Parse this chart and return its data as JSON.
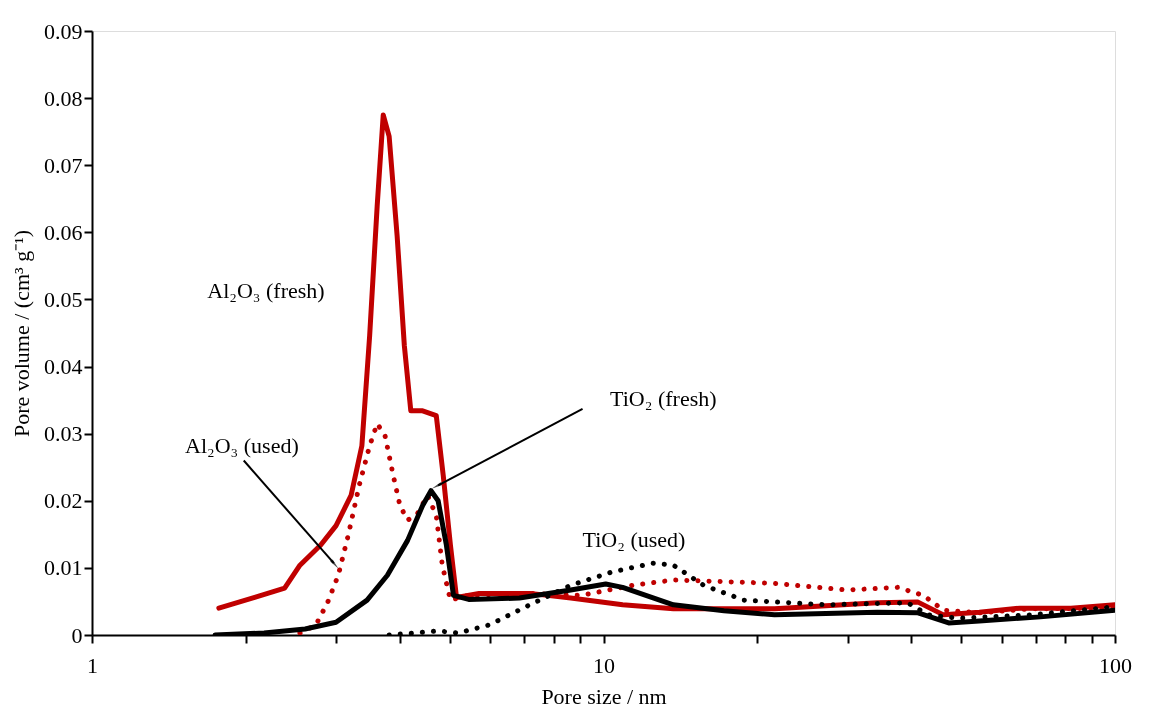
{
  "chart_data": {
    "type": "line",
    "xlabel": "Pore size / nm",
    "ylabel": "Pore volume / (cm³ g⁻¹)",
    "log": "x",
    "grid": false,
    "legend": false,
    "marker": "none",
    "xlim": [
      1,
      100
    ],
    "ylim": [
      0,
      0.09
    ],
    "xticks": [
      1,
      {
        "value": 2,
        "label": null
      },
      {
        "value": 3,
        "label": null
      },
      {
        "value": 4,
        "label": null
      },
      {
        "value": 5,
        "label": null
      },
      {
        "value": 6,
        "label": null
      },
      {
        "value": 7,
        "label": null
      },
      {
        "value": 8,
        "label": null
      },
      {
        "value": 9,
        "label": null
      },
      10,
      {
        "value": 20,
        "label": null
      },
      {
        "value": 30,
        "label": null
      },
      {
        "value": 40,
        "label": null
      },
      {
        "value": 50,
        "label": null
      },
      {
        "value": 60,
        "label": null
      },
      {
        "value": 70,
        "label": null
      },
      {
        "value": 80,
        "label": null
      },
      {
        "value": 90,
        "label": null
      },
      100
    ],
    "yticks": [
      0,
      0.01,
      0.02,
      0.03,
      0.04,
      0.05,
      0.06,
      0.07,
      0.08,
      0.09
    ],
    "series": [
      {
        "name": "Al₂O₃ (fresh)",
        "color": "#c00000",
        "line_style": "solid",
        "x": [
          1.77,
          2.08,
          2.38,
          2.55,
          2.8,
          3.0,
          3.21,
          3.37,
          3.49,
          3.61,
          3.71,
          3.81,
          3.95,
          4.08,
          4.2,
          4.43,
          4.71,
          4.86,
          5.02,
          5.16,
          5.71,
          7.18,
          8.63,
          10.9,
          13.7,
          21.6,
          34.3,
          41.2,
          46.2,
          54.3,
          65.2,
          82.0,
          100
        ],
        "values": [
          0.004,
          0.0056,
          0.007,
          0.0104,
          0.0134,
          0.0163,
          0.0208,
          0.0282,
          0.0446,
          0.0639,
          0.0775,
          0.0743,
          0.0594,
          0.0431,
          0.0334,
          0.0334,
          0.0327,
          0.0238,
          0.0134,
          0.0056,
          0.0062,
          0.0062,
          0.0055,
          0.0045,
          0.0039,
          0.0039,
          0.0048,
          0.0049,
          0.003,
          0.0034,
          0.004,
          0.004,
          0.0045
        ]
      },
      {
        "name": "Al₂O₃ (used)",
        "color": "#c00000",
        "line_style": "dotted",
        "x": [
          2.55,
          2.74,
          2.89,
          3.03,
          3.17,
          3.33,
          3.49,
          3.61,
          3.74,
          3.88,
          4.0,
          4.14,
          4.33,
          4.53,
          4.71,
          4.84,
          5.02,
          5.45,
          7.18,
          9.04,
          11.4,
          13.7,
          21.6,
          29.9,
          37.6,
          42.2,
          46.2,
          54.3,
          68.4,
          100
        ],
        "values": [
          0.0003,
          0.0015,
          0.0049,
          0.0089,
          0.0149,
          0.0223,
          0.0282,
          0.0315,
          0.0297,
          0.0238,
          0.0193,
          0.0171,
          0.0181,
          0.0208,
          0.0178,
          0.0104,
          0.0052,
          0.0059,
          0.0062,
          0.0059,
          0.0074,
          0.0082,
          0.0077,
          0.0067,
          0.0071,
          0.0059,
          0.0037,
          0.0033,
          0.0039,
          0.004
        ]
      },
      {
        "name": "TiO₂ (fresh)",
        "color": "#000000",
        "line_style": "solid",
        "x": [
          1.74,
          2.17,
          2.61,
          3.0,
          3.45,
          3.78,
          4.14,
          4.43,
          4.6,
          4.75,
          4.93,
          5.09,
          5.45,
          6.85,
          8.63,
          10.1,
          10.9,
          13.7,
          17.2,
          21.6,
          34.3,
          41.2,
          47.3,
          54.3,
          71.5,
          100
        ],
        "values": [
          0.0,
          0.0003,
          0.0009,
          0.0019,
          0.0052,
          0.0089,
          0.0141,
          0.0193,
          0.0215,
          0.02,
          0.0134,
          0.0059,
          0.0053,
          0.0055,
          0.0067,
          0.0076,
          0.0071,
          0.0045,
          0.0036,
          0.003,
          0.0034,
          0.0033,
          0.0018,
          0.0021,
          0.0027,
          0.0037
        ]
      },
      {
        "name": "TiO₂ (used)",
        "color": "#000000",
        "line_style": "dotted",
        "x": [
          3.81,
          4.75,
          5.2,
          5.98,
          7.18,
          8.63,
          10.4,
          12.5,
          13.7,
          15.7,
          18.8,
          27.3,
          39.3,
          43.2,
          49.4,
          68.4,
          100
        ],
        "values": [
          0.0,
          0.0006,
          0.0003,
          0.0015,
          0.0045,
          0.0074,
          0.0094,
          0.0107,
          0.0104,
          0.0074,
          0.0052,
          0.0045,
          0.0048,
          0.003,
          0.0025,
          0.003,
          0.0042
        ]
      }
    ]
  }
}
